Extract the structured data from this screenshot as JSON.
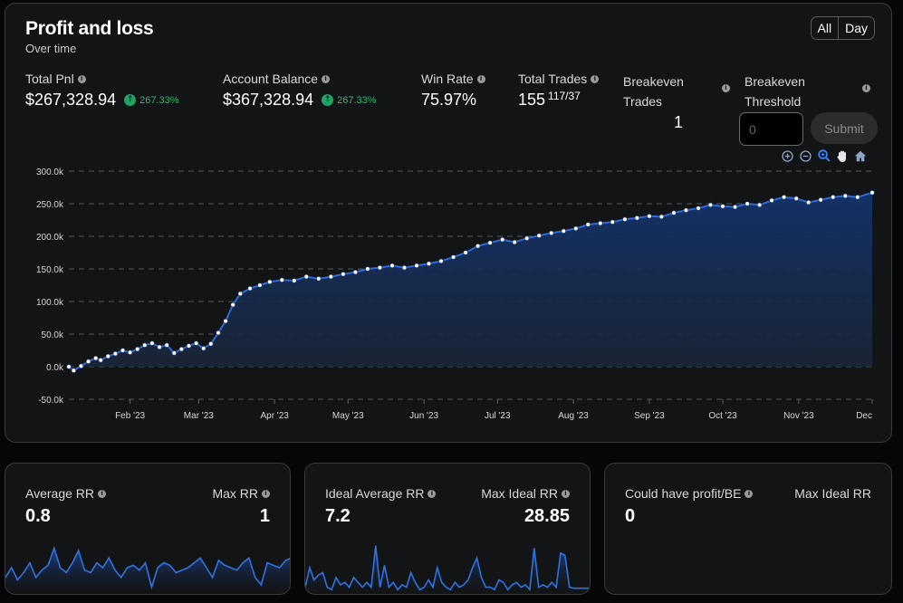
{
  "header": {
    "title": "Profit and loss",
    "subtitle": "Over time"
  },
  "range_toggle": {
    "all_label": "All",
    "day_label": "Day"
  },
  "stats": {
    "total_pnl": {
      "label": "Total Pnl",
      "value": "$267,328.94",
      "change": "267.33%"
    },
    "account_balance": {
      "label": "Account Balance",
      "value": "$367,328.94",
      "change": "267.33%"
    },
    "win_rate": {
      "label": "Win Rate",
      "value": "75.97%"
    },
    "total_trades": {
      "label": "Total Trades",
      "value": "155",
      "split": "117/37"
    },
    "breakeven_trades": {
      "label_line1": "Breakeven",
      "label_line2": "Trades",
      "value": "1"
    },
    "breakeven_threshold": {
      "label_line1": "Breakeven",
      "label_line2": "Threshold",
      "placeholder": "0",
      "submit_label": "Submit"
    }
  },
  "chart_tools": [
    "zoom-in-icon",
    "zoom-out-icon",
    "magnify-icon",
    "pan-hand-icon",
    "home-icon"
  ],
  "colors": {
    "accent": "#2f73e0",
    "line": "#2c6be0",
    "fill_top": "#13336b",
    "positive": "#1fa463",
    "background": "#131415"
  },
  "chart_data": {
    "type": "area",
    "title": "",
    "xlabel": "",
    "ylabel": "",
    "ylim": [
      -50000,
      300000
    ],
    "yticks": [
      -50000,
      0,
      50000,
      100000,
      150000,
      200000,
      250000,
      300000
    ],
    "ytick_labels": [
      "-50.0k",
      "0.0k",
      "50.0k",
      "100.0k",
      "150.0k",
      "200.0k",
      "250.0k",
      "300.0k"
    ],
    "xlim": [
      "2023-01-07",
      "2023-12-01"
    ],
    "xticks": [
      "2023-02-01",
      "2023-03-01",
      "2023-04-01",
      "2023-05-01",
      "2023-06-01",
      "2023-07-01",
      "2023-08-01",
      "2023-09-01",
      "2023-10-01",
      "2023-11-01",
      "2023-12-01"
    ],
    "xtick_labels": [
      "Feb '23",
      "Mar '23",
      "Apr '23",
      "May '23",
      "Jun '23",
      "Jul '23",
      "Aug '23",
      "Sep '23",
      "Oct '23",
      "Nov '23",
      "Dec"
    ],
    "grid": true,
    "series": [
      {
        "points": [
          [
            "2023-01-07",
            0
          ],
          [
            "2023-01-09",
            -6000
          ],
          [
            "2023-01-12",
            1000
          ],
          [
            "2023-01-15",
            8000
          ],
          [
            "2023-01-18",
            13000
          ],
          [
            "2023-01-20",
            10000
          ],
          [
            "2023-01-23",
            16000
          ],
          [
            "2023-01-26",
            20000
          ],
          [
            "2023-01-29",
            25000
          ],
          [
            "2023-02-01",
            22000
          ],
          [
            "2023-02-04",
            27000
          ],
          [
            "2023-02-07",
            33000
          ],
          [
            "2023-02-10",
            36000
          ],
          [
            "2023-02-13",
            30000
          ],
          [
            "2023-02-16",
            33000
          ],
          [
            "2023-02-19",
            21000
          ],
          [
            "2023-02-22",
            27000
          ],
          [
            "2023-02-25",
            32000
          ],
          [
            "2023-02-28",
            36000
          ],
          [
            "2023-03-03",
            28000
          ],
          [
            "2023-03-06",
            35000
          ],
          [
            "2023-03-09",
            52000
          ],
          [
            "2023-03-12",
            70000
          ],
          [
            "2023-03-15",
            95000
          ],
          [
            "2023-03-18",
            112000
          ],
          [
            "2023-03-22",
            120000
          ],
          [
            "2023-03-26",
            125000
          ],
          [
            "2023-03-30",
            130000
          ],
          [
            "2023-04-04",
            133000
          ],
          [
            "2023-04-09",
            132000
          ],
          [
            "2023-04-14",
            138000
          ],
          [
            "2023-04-19",
            135000
          ],
          [
            "2023-04-24",
            138000
          ],
          [
            "2023-04-29",
            142000
          ],
          [
            "2023-05-04",
            145000
          ],
          [
            "2023-05-09",
            150000
          ],
          [
            "2023-05-14",
            152000
          ],
          [
            "2023-05-19",
            155000
          ],
          [
            "2023-05-24",
            152000
          ],
          [
            "2023-05-29",
            155000
          ],
          [
            "2023-06-03",
            158000
          ],
          [
            "2023-06-08",
            162000
          ],
          [
            "2023-06-13",
            168000
          ],
          [
            "2023-06-18",
            175000
          ],
          [
            "2023-06-23",
            185000
          ],
          [
            "2023-06-28",
            190000
          ],
          [
            "2023-07-03",
            195000
          ],
          [
            "2023-07-08",
            191000
          ],
          [
            "2023-07-13",
            197000
          ],
          [
            "2023-07-18",
            201000
          ],
          [
            "2023-07-23",
            205000
          ],
          [
            "2023-07-28",
            208000
          ],
          [
            "2023-08-02",
            212000
          ],
          [
            "2023-08-07",
            218000
          ],
          [
            "2023-08-12",
            220000
          ],
          [
            "2023-08-17",
            222000
          ],
          [
            "2023-08-22",
            226000
          ],
          [
            "2023-08-27",
            228000
          ],
          [
            "2023-09-01",
            231000
          ],
          [
            "2023-09-06",
            230000
          ],
          [
            "2023-09-11",
            236000
          ],
          [
            "2023-09-16",
            240000
          ],
          [
            "2023-09-21",
            243000
          ],
          [
            "2023-09-26",
            248000
          ],
          [
            "2023-10-01",
            246000
          ],
          [
            "2023-10-06",
            245000
          ],
          [
            "2023-10-11",
            250000
          ],
          [
            "2023-10-16",
            248000
          ],
          [
            "2023-10-21",
            255000
          ],
          [
            "2023-10-26",
            260000
          ],
          [
            "2023-10-31",
            258000
          ],
          [
            "2023-11-05",
            252000
          ],
          [
            "2023-11-10",
            256000
          ],
          [
            "2023-11-15",
            260000
          ],
          [
            "2023-11-20",
            262000
          ],
          [
            "2023-11-25",
            260000
          ],
          [
            "2023-12-01",
            267000
          ]
        ]
      }
    ]
  },
  "cards": {
    "rr": {
      "left_label": "Average RR",
      "left_value": "0.8",
      "right_label": "Max RR",
      "right_value": "1"
    },
    "ideal": {
      "left_label": "Ideal Average RR",
      "left_value": "7.2",
      "right_label": "Max Ideal RR",
      "right_value": "28.85"
    },
    "profit": {
      "left_label": "Could have profit/BE",
      "left_value": "0",
      "right_label": "Max Ideal RR"
    }
  },
  "spark_rr": [
    0.3,
    0.5,
    0.25,
    0.4,
    0.6,
    0.3,
    0.45,
    0.55,
    0.9,
    0.5,
    0.4,
    0.6,
    0.85,
    0.45,
    0.4,
    0.6,
    0.5,
    0.7,
    0.45,
    0.3,
    0.5,
    0.55,
    0.45,
    0.6,
    0.1,
    0.5,
    0.6,
    0.55,
    0.4,
    0.45,
    0.5,
    0.6,
    0.7,
    0.5,
    0.3,
    0.65,
    0.55,
    0.5,
    0.45,
    0.6,
    0.7,
    0.3,
    0.15,
    0.6,
    0.55,
    0.5,
    0.65,
    0.7
  ],
  "spark_ideal": [
    0.1,
    0.5,
    0.25,
    0.35,
    0.4,
    0.1,
    0.05,
    0.3,
    0.15,
    0.2,
    0.1,
    0.3,
    0.2,
    0.1,
    0.2,
    0.1,
    0.95,
    0.1,
    0.55,
    0.1,
    0.2,
    0.05,
    0.15,
    0.1,
    0.4,
    0.2,
    0.05,
    0.1,
    0.25,
    0.1,
    0.5,
    0.2,
    0.1,
    0.05,
    0.2,
    0.1,
    0.15,
    0.25,
    0.5,
    0.7,
    0.3,
    0.1,
    0.1,
    0.05,
    0.25,
    0.2,
    0.05,
    0.15,
    0.2,
    0.1,
    0.15,
    0.05,
    0.9,
    0.1,
    0.15,
    0.1,
    0.2,
    0.1,
    0.8,
    0.75,
    0.1,
    0.08,
    0.08,
    0.08,
    0.08,
    0.08
  ]
}
